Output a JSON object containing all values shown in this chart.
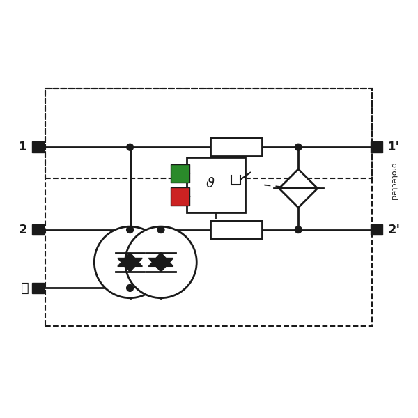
{
  "bg_color": "#ffffff",
  "line_color": "#1a1a1a",
  "green_color": "#2a8a2a",
  "red_color": "#cc2222",
  "fig_w": 6.0,
  "fig_h": 6.0,
  "dpi": 100
}
